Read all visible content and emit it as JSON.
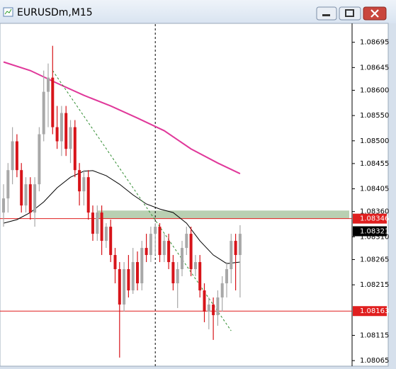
{
  "window": {
    "title": "EURUSDm,M15"
  },
  "chart_data": {
    "type": "candlestick",
    "grid": false,
    "ylim": [
      1.08054,
      1.08731
    ],
    "yticks": [
      1.08695,
      1.08645,
      {
        "value": 1.086,
        "label": "1.08600"
      },
      {
        "value": 1.0855,
        "label": "1.08550"
      },
      {
        "value": 1.085,
        "label": "1.08500"
      },
      1.08455,
      1.08405,
      {
        "value": 1.0836,
        "label": "1.08360"
      },
      {
        "value": 1.0831,
        "label": "1.08310"
      },
      1.08265,
      1.08215,
      1.08115,
      1.08065
    ],
    "up_color": "#a8a8a8",
    "down_color": "#d7141a",
    "open": [
      1.08358,
      1.08386,
      1.08442,
      1.08499,
      1.08442,
      1.08372,
      1.08414,
      1.08358,
      1.08414,
      1.08513,
      1.08597,
      1.08625,
      1.08527,
      1.08499,
      1.08555,
      1.08484,
      1.08527,
      1.08442,
      1.084,
      1.08428,
      1.08358,
      1.08316,
      1.08358,
      1.08302,
      1.0833,
      1.08274,
      1.08246,
      1.08176,
      1.08246,
      1.08204,
      1.0826,
      1.08218,
      1.08288,
      1.08274,
      1.08316,
      1.0833,
      1.08274,
      1.08302,
      1.0826,
      1.08218,
      1.08246,
      1.08288,
      1.08316,
      1.08246,
      1.0826,
      1.08204,
      1.08162,
      1.08176,
      1.08155,
      1.0819,
      1.08218,
      1.08246,
      1.08302,
      1.08274
    ],
    "high": [
      1.08414,
      1.08456,
      1.08527,
      1.08513,
      1.08456,
      1.08428,
      1.08428,
      1.08428,
      1.08527,
      1.08639,
      1.08653,
      1.08688,
      1.08569,
      1.08569,
      1.08569,
      1.08541,
      1.08541,
      1.08456,
      1.08442,
      1.08442,
      1.08372,
      1.08372,
      1.08372,
      1.08337,
      1.08344,
      1.08288,
      1.0826,
      1.0826,
      1.08274,
      1.08288,
      1.08281,
      1.08302,
      1.08316,
      1.0833,
      1.08337,
      1.08337,
      1.08316,
      1.08316,
      1.08274,
      1.0826,
      1.08302,
      1.0833,
      1.0833,
      1.08274,
      1.08274,
      1.08218,
      1.0819,
      1.0819,
      1.08204,
      1.08232,
      1.0826,
      1.08316,
      1.08316,
      1.08333
    ],
    "low": [
      1.0833,
      1.08358,
      1.08414,
      1.08428,
      1.08358,
      1.08358,
      1.08344,
      1.0833,
      1.084,
      1.08499,
      1.08527,
      1.08513,
      1.08484,
      1.0847,
      1.0847,
      1.08456,
      1.08428,
      1.08372,
      1.08372,
      1.08344,
      1.08302,
      1.08302,
      1.08274,
      1.08288,
      1.0826,
      1.08218,
      1.08071,
      1.08162,
      1.0819,
      1.08197,
      1.08204,
      1.08204,
      1.0826,
      1.0826,
      1.08274,
      1.0826,
      1.0826,
      1.08246,
      1.08204,
      1.08169,
      1.08232,
      1.08274,
      1.08232,
      1.08232,
      1.0819,
      1.08141,
      1.08127,
      1.08106,
      1.08134,
      1.08162,
      1.0819,
      1.08218,
      1.08204,
      1.0819
    ],
    "close": [
      1.08386,
      1.08442,
      1.08499,
      1.08442,
      1.08372,
      1.08414,
      1.08358,
      1.08414,
      1.08513,
      1.08597,
      1.08625,
      1.08527,
      1.08499,
      1.08555,
      1.08484,
      1.08527,
      1.08442,
      1.084,
      1.08428,
      1.08358,
      1.08316,
      1.08358,
      1.08302,
      1.0833,
      1.08274,
      1.08246,
      1.08176,
      1.08246,
      1.08204,
      1.0826,
      1.08218,
      1.08288,
      1.08274,
      1.08316,
      1.0833,
      1.08274,
      1.08302,
      1.0826,
      1.08218,
      1.08246,
      1.08288,
      1.08316,
      1.08246,
      1.0826,
      1.08204,
      1.08162,
      1.08176,
      1.08155,
      1.0819,
      1.08218,
      1.08246,
      1.08302,
      1.08274,
      1.08316
    ],
    "lines": [
      {
        "color": "#e0389a",
        "x": [
          0,
          6,
          12,
          18,
          24,
          30,
          36,
          42,
          48,
          53
        ],
        "values": [
          1.08656,
          1.08639,
          1.08614,
          1.0859,
          1.08569,
          1.08545,
          1.0852,
          1.08484,
          1.08456,
          1.08435
        ]
      },
      {
        "color": "#000000",
        "x": [
          0,
          3,
          6,
          9,
          12,
          15,
          18,
          20,
          23,
          26,
          29,
          32,
          35,
          38,
          41,
          44,
          47,
          50,
          53
        ],
        "values": [
          1.08337,
          1.08344,
          1.08358,
          1.08379,
          1.08407,
          1.08428,
          1.0844,
          1.08441,
          1.08431,
          1.08414,
          1.08393,
          1.08375,
          1.08365,
          1.08358,
          1.08337,
          1.08302,
          1.08274,
          1.08257,
          1.0826
        ]
      }
    ],
    "trendline": {
      "color": "#2e8b2e",
      "x": [
        11,
        51
      ],
      "values": [
        1.08639,
        1.08124
      ]
    },
    "zone": {
      "color": "#b9d0b2",
      "x": 21,
      "values": [
        1.08346,
        1.08362
      ]
    },
    "hlines": {
      "color": "#e01f1f",
      "values": [
        1.08346,
        1.08163
      ]
    },
    "current_price": 1.08321,
    "crosshair_x": 34
  }
}
